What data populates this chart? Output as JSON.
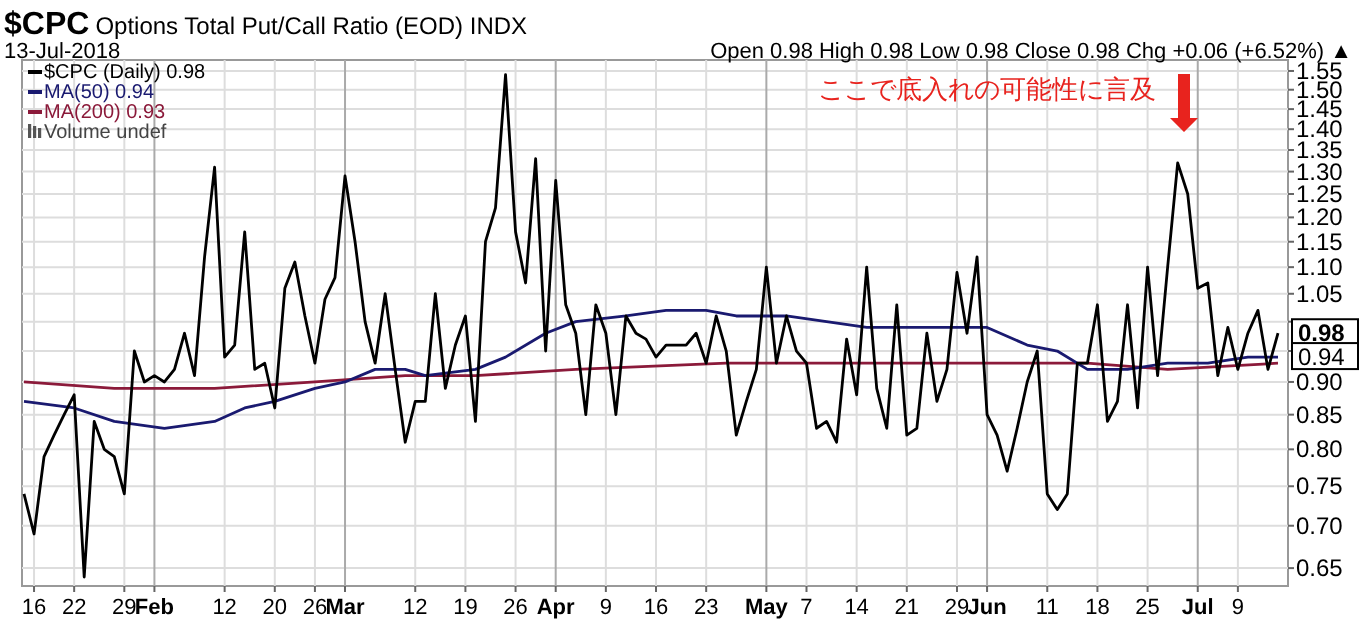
{
  "chart_data": {
    "type": "line",
    "title": "$CPC Options Total Put/Call Ratio (EOD)  INDX",
    "subtitle": "13-Jul-2018",
    "categories": [
      null,
      "16",
      null,
      null,
      null,
      "22",
      null,
      null,
      null,
      null,
      "29",
      null,
      null,
      "Feb",
      null,
      null,
      null,
      null,
      null,
      null,
      "12",
      null,
      null,
      null,
      null,
      "20",
      null,
      null,
      null,
      "26",
      null,
      null,
      "Mar",
      null,
      null,
      null,
      null,
      null,
      null,
      "12",
      null,
      null,
      null,
      null,
      "19",
      null,
      null,
      null,
      null,
      "26",
      null,
      null,
      null,
      "Apr",
      null,
      null,
      null,
      null,
      "9",
      null,
      null,
      null,
      null,
      "16",
      null,
      null,
      null,
      null,
      "23",
      null,
      null,
      null,
      null,
      null,
      "May",
      null,
      null,
      null,
      "7",
      null,
      null,
      null,
      null,
      "14",
      null,
      null,
      null,
      null,
      "21",
      null,
      null,
      null,
      null,
      "29",
      null,
      null,
      "Jun",
      null,
      null,
      null,
      null,
      null,
      "11",
      null,
      null,
      null,
      null,
      "18",
      null,
      null,
      null,
      null,
      "25",
      null,
      null,
      null,
      null,
      "Jul",
      null,
      null,
      null,
      "9",
      null,
      null,
      null,
      null
    ],
    "series": [
      {
        "name": "$CPC (Daily) 0.98",
        "color": "#000000",
        "values": [
          0.74,
          0.69,
          0.79,
          0.82,
          0.85,
          0.88,
          0.64,
          0.84,
          0.8,
          0.79,
          0.74,
          0.95,
          0.9,
          0.91,
          0.9,
          0.92,
          0.98,
          0.91,
          1.12,
          1.31,
          0.94,
          0.96,
          1.17,
          0.92,
          0.93,
          0.86,
          1.06,
          1.11,
          1.01,
          0.93,
          1.04,
          1.08,
          1.29,
          1.15,
          1.0,
          0.93,
          1.05,
          0.92,
          0.81,
          0.87,
          0.87,
          1.05,
          0.89,
          0.96,
          1.01,
          0.84,
          1.15,
          1.22,
          1.54,
          1.17,
          1.07,
          1.33,
          0.95,
          1.28,
          1.03,
          0.98,
          0.85,
          1.03,
          0.98,
          0.85,
          1.01,
          0.98,
          0.97,
          0.94,
          0.96,
          0.96,
          0.96,
          0.98,
          0.93,
          1.01,
          0.95,
          0.82,
          0.87,
          0.92,
          1.1,
          0.93,
          1.01,
          0.95,
          0.93,
          0.83,
          0.84,
          0.81,
          0.97,
          0.88,
          1.1,
          0.89,
          0.83,
          1.03,
          0.82,
          0.83,
          0.98,
          0.87,
          0.92,
          1.09,
          0.98,
          1.12,
          0.85,
          0.82,
          0.77,
          0.83,
          0.9,
          0.95,
          0.74,
          0.72,
          0.74,
          0.93,
          0.93,
          1.03,
          0.84,
          0.87,
          1.03,
          0.86,
          1.1,
          0.91,
          1.1,
          1.32,
          1.25,
          1.06,
          1.07,
          0.91,
          0.99,
          0.92,
          0.98,
          1.02,
          0.92,
          0.98
        ]
      },
      {
        "name": "MA(50) 0.94",
        "color": "#1a1a70",
        "values": [
          0.87,
          null,
          null,
          null,
          null,
          0.86,
          null,
          null,
          null,
          0.84,
          null,
          null,
          null,
          null,
          0.83,
          null,
          null,
          null,
          null,
          0.84,
          null,
          null,
          0.86,
          null,
          null,
          0.87,
          null,
          null,
          null,
          0.89,
          null,
          null,
          0.9,
          null,
          null,
          0.92,
          null,
          null,
          0.92,
          null,
          0.91,
          null,
          null,
          null,
          null,
          0.92,
          null,
          null,
          0.94,
          null,
          null,
          null,
          0.98,
          null,
          null,
          1.0,
          null,
          null,
          null,
          null,
          1.01,
          null,
          null,
          null,
          1.02,
          null,
          null,
          null,
          1.02,
          null,
          null,
          1.01,
          null,
          null,
          null,
          null,
          1.01,
          null,
          null,
          null,
          1.0,
          null,
          null,
          null,
          0.99,
          null,
          null,
          null,
          null,
          0.99,
          null,
          null,
          null,
          null,
          0.99,
          null,
          0.99,
          null,
          null,
          null,
          0.96,
          null,
          null,
          0.95,
          null,
          null,
          0.92,
          null,
          null,
          null,
          0.92,
          null,
          null,
          null,
          0.93,
          null,
          null,
          null,
          0.93,
          null,
          null,
          null,
          0.94,
          null,
          null,
          0.94
        ]
      },
      {
        "name": "MA(200) 0.93",
        "color": "#8b1a3a",
        "values": [
          0.9,
          null,
          null,
          null,
          null,
          null,
          null,
          null,
          null,
          0.89,
          null,
          null,
          null,
          null,
          null,
          null,
          null,
          null,
          null,
          0.89,
          null,
          null,
          null,
          null,
          null,
          null,
          null,
          null,
          null,
          0.9,
          null,
          null,
          null,
          null,
          null,
          null,
          null,
          null,
          0.91,
          null,
          null,
          null,
          null,
          null,
          null,
          0.91,
          null,
          null,
          null,
          null,
          null,
          null,
          null,
          null,
          null,
          0.92,
          null,
          null,
          null,
          null,
          null,
          null,
          null,
          null,
          null,
          null,
          null,
          null,
          null,
          null,
          0.93,
          null,
          null,
          null,
          null,
          null,
          null,
          null,
          null,
          null,
          null,
          null,
          null,
          null,
          null,
          null,
          null,
          null,
          null,
          0.93,
          null,
          null,
          null,
          null,
          null,
          null,
          null,
          null,
          null,
          null,
          0.93,
          null,
          null,
          null,
          null,
          null,
          0.93,
          null,
          null,
          null,
          null,
          null,
          null,
          null,
          0.92,
          null,
          null,
          null,
          null,
          null,
          null,
          null,
          null,
          null,
          null,
          0.93
        ]
      }
    ],
    "log": "y",
    "ylim": [
      0.63,
      1.58
    ],
    "yticks": [
      0.65,
      {
        "value": 0.7,
        "label": "0.70"
      },
      0.75,
      {
        "value": 0.8,
        "label": "0.80"
      },
      0.85,
      {
        "value": 0.9,
        "label": "0.90"
      },
      {
        "value": 0.95,
        "label": null
      },
      {
        "value": 1.0,
        "label": null
      },
      1.05,
      {
        "value": 1.1,
        "label": "1.10"
      },
      1.15,
      {
        "value": 1.2,
        "label": "1.20"
      },
      1.25,
      {
        "value": 1.3,
        "label": "1.30"
      },
      1.35,
      {
        "value": 1.4,
        "label": "1.40"
      },
      1.45,
      {
        "value": 1.5,
        "label": "1.50"
      },
      1.55
    ],
    "grid": true,
    "legend": "top left",
    "annotations": [
      "Open 0.98  High 0.98  Low 0.98  Close 0.98  Chg +0.06 (+6.52%) ▲",
      "Volume undef",
      "ここで底入れの可能性に言及",
      {
        "text": "0.98",
        "y": 0.98
      },
      {
        "text": "0.94",
        "y": 0.94
      }
    ]
  }
}
